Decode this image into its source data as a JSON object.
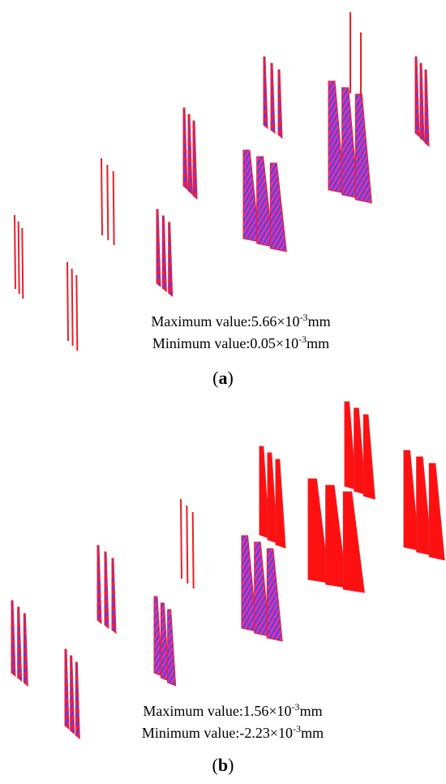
{
  "panels": [
    {
      "label": "a",
      "max_text": "Maximum value:5.66×10",
      "max_exp": "-3",
      "max_unit": "mm",
      "min_text": "Minimum value:0.05×10",
      "min_exp": "-3",
      "min_unit": "mm"
    },
    {
      "label": "b",
      "max_text": "Maximum value:1.56×10",
      "max_exp": "-3",
      "max_unit": "mm",
      "min_text": "Minimum value:-2.23×10",
      "min_exp": "-3",
      "min_unit": "mm"
    }
  ]
}
